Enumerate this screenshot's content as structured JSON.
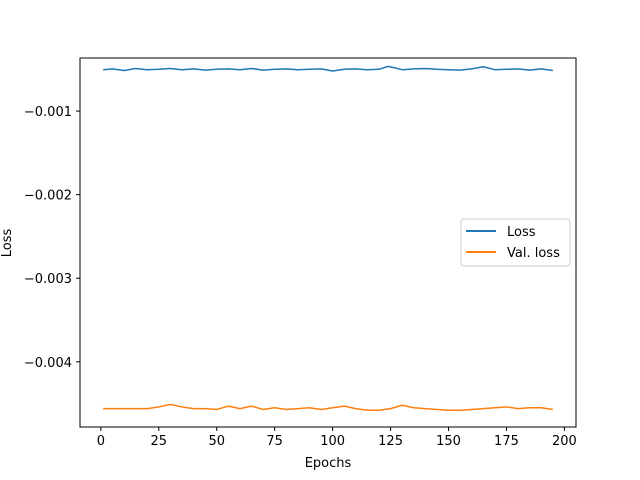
{
  "chart_data": {
    "type": "line",
    "title": "",
    "xlabel": "Epochs",
    "ylabel": "Loss",
    "xlim": [
      -9,
      205
    ],
    "ylim": [
      -0.00478,
      -0.000365
    ],
    "xticks": [
      0,
      25,
      50,
      75,
      100,
      125,
      150,
      175,
      200
    ],
    "xtick_labels": [
      "0",
      "25",
      "50",
      "75",
      "100",
      "125",
      "150",
      "175",
      "200"
    ],
    "yticks": [
      -0.001,
      -0.002,
      -0.003,
      -0.004
    ],
    "ytick_labels": [
      "−0.001",
      "−0.002",
      "−0.003",
      "−0.004"
    ],
    "grid": false,
    "legend_position": "center-right",
    "series": [
      {
        "name": "Loss",
        "color": "#1f77b4",
        "x": [
          1,
          5,
          10,
          15,
          20,
          25,
          30,
          35,
          40,
          45,
          50,
          55,
          60,
          65,
          70,
          75,
          80,
          85,
          90,
          95,
          100,
          105,
          110,
          115,
          120,
          124,
          130,
          135,
          140,
          145,
          150,
          155,
          160,
          165,
          170,
          175,
          180,
          185,
          190,
          195
        ],
        "y": [
          -0.000505,
          -0.000495,
          -0.000515,
          -0.00049,
          -0.000505,
          -0.0005,
          -0.00049,
          -0.000505,
          -0.000495,
          -0.00051,
          -0.0005,
          -0.000495,
          -0.000505,
          -0.00049,
          -0.00051,
          -0.0005,
          -0.000495,
          -0.000505,
          -0.0005,
          -0.000495,
          -0.00052,
          -0.0005,
          -0.000495,
          -0.000505,
          -0.0005,
          -0.000465,
          -0.000505,
          -0.000495,
          -0.00049,
          -0.0005,
          -0.000505,
          -0.00051,
          -0.000495,
          -0.00047,
          -0.000505,
          -0.0005,
          -0.000495,
          -0.00051,
          -0.000495,
          -0.000515
        ]
      },
      {
        "name": "Val. loss",
        "color": "#ff7f0e",
        "x": [
          1,
          5,
          10,
          15,
          20,
          25,
          30,
          35,
          40,
          45,
          50,
          55,
          60,
          65,
          70,
          75,
          80,
          85,
          90,
          95,
          100,
          105,
          110,
          115,
          120,
          125,
          130,
          135,
          140,
          145,
          150,
          155,
          160,
          165,
          170,
          175,
          180,
          185,
          190,
          195
        ],
        "y": [
          -0.00456,
          -0.00456,
          -0.00456,
          -0.00456,
          -0.00456,
          -0.00454,
          -0.00451,
          -0.00454,
          -0.00456,
          -0.00456,
          -0.00457,
          -0.00453,
          -0.00456,
          -0.00453,
          -0.00457,
          -0.00455,
          -0.00457,
          -0.00456,
          -0.00455,
          -0.00457,
          -0.00455,
          -0.00453,
          -0.00456,
          -0.00458,
          -0.00458,
          -0.00456,
          -0.00452,
          -0.00455,
          -0.00456,
          -0.00457,
          -0.00458,
          -0.00458,
          -0.00457,
          -0.00456,
          -0.00455,
          -0.00454,
          -0.00456,
          -0.00455,
          -0.00455,
          -0.00457
        ]
      }
    ]
  }
}
